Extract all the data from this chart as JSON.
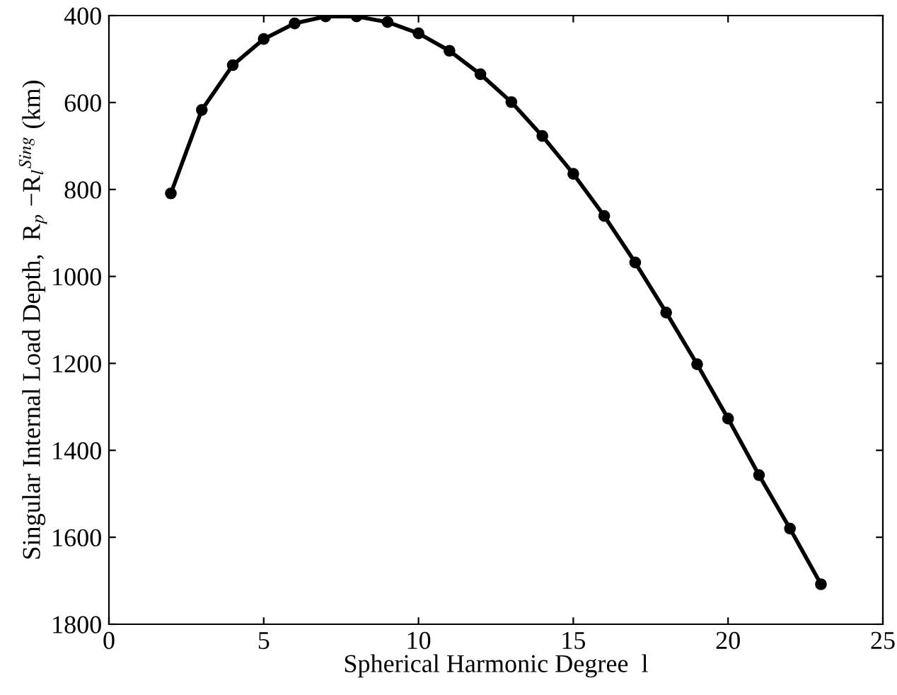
{
  "chart_data": {
    "type": "line",
    "xlabel": "Spherical Harmonic Degree  l",
    "ylabel": "Singular Internal Load Depth,  R$_{p}$ −R$_{l}$$^{Sing}$ (km)",
    "x": [
      2,
      3,
      4,
      5,
      6,
      7,
      8,
      9,
      10,
      11,
      12,
      13,
      14,
      15,
      16,
      17,
      18,
      19,
      20,
      21,
      22,
      23
    ],
    "series": [
      {
        "color": "#000000",
        "values": [
          809,
          617,
          514,
          454,
          418,
          402,
          402,
          415,
          441,
          481,
          535,
          599,
          677,
          764,
          861,
          968,
          1083,
          1202,
          1327,
          1457,
          1580,
          1708
        ]
      }
    ],
    "xlim": [
      0,
      25
    ],
    "xticks": [
      0,
      5,
      10,
      15,
      20,
      25
    ],
    "ylim": [
      1800,
      400
    ],
    "yticks": [
      400,
      600,
      800,
      1000,
      1200,
      1400,
      1600,
      1800
    ],
    "grid": false,
    "legend": false,
    "marker": "circle",
    "line_style": "solid"
  }
}
